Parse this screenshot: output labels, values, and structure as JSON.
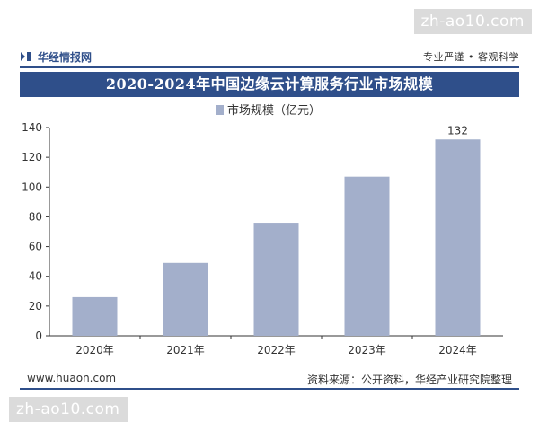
{
  "site_tag": "zh-ao10.com",
  "header": {
    "brand": "华经情报网",
    "slogan": "专业严谨 • 客观科学"
  },
  "footer": {
    "website": "www.huaon.com",
    "source": "资料来源：公开资料，华经产业研究院整理"
  },
  "chart_data": {
    "type": "bar",
    "title": "2020-2024年中国边缘云计算服务行业市场规模",
    "categories": [
      "2020年",
      "2021年",
      "2022年",
      "2023年",
      "2024年"
    ],
    "series": [
      {
        "name": "市场规模（亿元）",
        "values": [
          26,
          49,
          76,
          107,
          132
        ],
        "data_labels": [
          "",
          "",
          "",
          "",
          "132"
        ]
      }
    ],
    "ylim": [
      0,
      140
    ],
    "yticks": [
      0,
      20,
      40,
      60,
      80,
      100,
      120,
      140
    ],
    "legend_position": "top-center",
    "grid": false,
    "bar_color": "#a3afcb",
    "accent_color": "#2f4f8a"
  }
}
